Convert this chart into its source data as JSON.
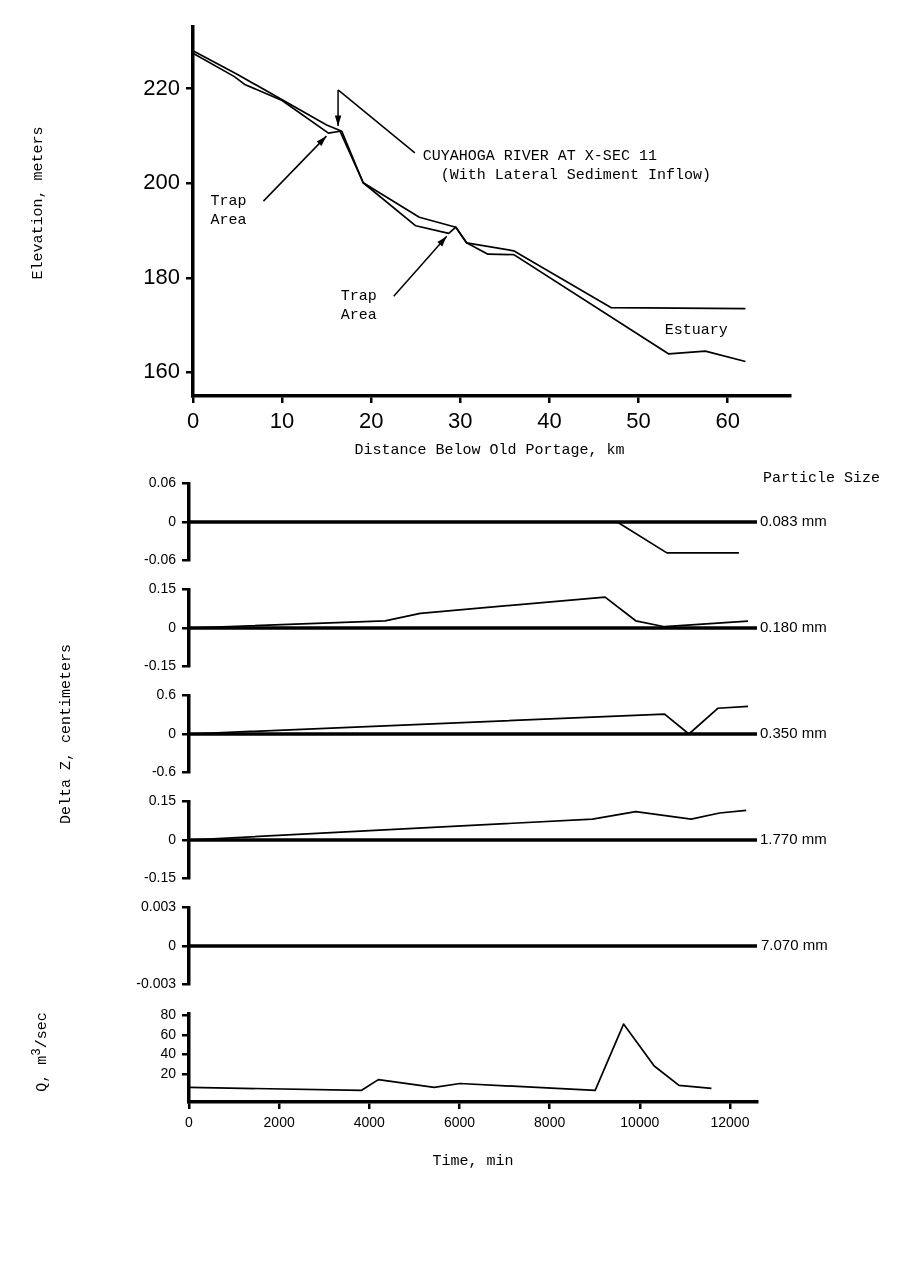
{
  "chart_data": [
    {
      "type": "line",
      "xlabel": "Distance Below Old Portage, km",
      "ylabel": "Elevation, meters",
      "xlim": [
        0,
        67
      ],
      "ylim": [
        155,
        233
      ],
      "xticks": [
        0,
        10,
        20,
        30,
        40,
        50,
        60
      ],
      "yticks": [
        160,
        180,
        200,
        220
      ],
      "series": [
        {
          "color": "#000000",
          "x": [
            0,
            5,
            15,
            16.7,
            19.1,
            25.4,
            29.5,
            30.7,
            36,
            46.9,
            62
          ],
          "values": [
            228,
            223,
            212.3,
            211,
            200.1,
            192.8,
            190.7,
            187.4,
            185.7,
            173.7,
            173.5
          ]
        },
        {
          "color": "#000000",
          "x": [
            0,
            4.6,
            5.8,
            10,
            15.2,
            16.5,
            19.1,
            25,
            28.7,
            29.5,
            30.7,
            33.1,
            36,
            53.4,
            57.5,
            62
          ],
          "values": [
            227.5,
            222.6,
            220.9,
            217.5,
            210.6,
            211,
            200.1,
            191,
            189.4,
            190.7,
            187.4,
            185,
            184.9,
            163.9,
            164.5,
            162.3
          ]
        }
      ],
      "annotations": [
        {
          "text": "Trap\nArea",
          "x": 15.2,
          "y": 210.6
        },
        {
          "text": "Trap\nArea",
          "x": 28.7,
          "y": 189.4
        },
        "CUYAHOGA RIVER AT X-SEC 11\n  (With Lateral Sediment Inflow)",
        "Estuary"
      ]
    },
    {
      "type": "line",
      "xlim": [
        0,
        12600
      ],
      "ylim": [
        -0.06,
        0.06
      ],
      "yticks": [
        -0.06,
        0,
        0.06
      ],
      "tick_labels": "y",
      "series": [
        {
          "color": "#000000",
          "x": [
            0,
            9500,
            10600,
            12200
          ],
          "values": [
            0,
            0,
            -0.048,
            -0.048
          ]
        }
      ],
      "ref_lines": [
        {
          "axis": "y",
          "value": 0,
          "label": "0.083 mm",
          "color": "#000000"
        }
      ],
      "annotations": [
        "Particle Size"
      ]
    },
    {
      "type": "line",
      "xlim": [
        0,
        12600
      ],
      "ylim": [
        -0.15,
        0.15
      ],
      "yticks": [
        -0.15,
        0,
        0.15
      ],
      "tick_labels": "y",
      "series": [
        {
          "color": "#000000",
          "x": [
            0,
            4350,
            5130,
            9230,
            9910,
            10550,
            12400
          ],
          "values": [
            0,
            0.028,
            0.057,
            0.12,
            0.028,
            0.005,
            0.027
          ]
        }
      ],
      "ref_lines": [
        {
          "axis": "y",
          "value": 0,
          "label": "0.180 mm",
          "color": "#000000"
        }
      ]
    },
    {
      "type": "line",
      "ylabel": "Delta Z, centimeters",
      "xlim": [
        0,
        12600
      ],
      "ylim": [
        -0.6,
        0.6
      ],
      "yticks": [
        -0.6,
        0,
        0.6
      ],
      "tick_labels": "y",
      "series": [
        {
          "color": "#000000",
          "x": [
            0,
            10550,
            11090,
            11730,
            12400
          ],
          "values": [
            0,
            0.31,
            0,
            0.4,
            0.43
          ]
        }
      ],
      "ref_lines": [
        {
          "axis": "y",
          "value": 0,
          "label": "0.350 mm",
          "color": "#000000"
        }
      ]
    },
    {
      "type": "line",
      "xlim": [
        0,
        12600
      ],
      "ylim": [
        -0.15,
        0.15
      ],
      "yticks": [
        -0.15,
        0,
        0.15
      ],
      "tick_labels": "y",
      "series": [
        {
          "color": "#000000",
          "x": [
            0,
            8950,
            9910,
            11140,
            11770,
            12360
          ],
          "values": [
            0,
            0.081,
            0.11,
            0.081,
            0.105,
            0.115
          ]
        }
      ],
      "ref_lines": [
        {
          "axis": "y",
          "value": 0,
          "label": "1.770 mm",
          "color": "#000000"
        }
      ]
    },
    {
      "type": "line",
      "xlim": [
        0,
        12600
      ],
      "ylim": [
        -0.003,
        0.003
      ],
      "yticks": [
        -0.003,
        0,
        0.003
      ],
      "tick_labels": "y",
      "series": [
        {
          "name": "7.070 mm",
          "color": "#000000",
          "x": [
            0,
            12600
          ],
          "values": [
            0,
            0
          ]
        }
      ]
    },
    {
      "type": "line",
      "xlabel": "Time, min",
      "ylabel": "Q, m$^{3}$/sec",
      "xlim": [
        0,
        12600
      ],
      "ylim": [
        -9,
        82
      ],
      "xticks": [
        0,
        2000,
        4000,
        6000,
        8000,
        10000,
        12000
      ],
      "yticks": [
        20,
        40,
        60,
        80
      ],
      "series": [
        {
          "color": "#000000",
          "x": [
            0,
            3830,
            4200,
            5440,
            6010,
            9010,
            9640,
            10320,
            10870,
            11590
          ],
          "values": [
            6,
            3,
            14,
            6,
            10,
            3,
            71,
            28,
            8,
            5
          ]
        }
      ]
    }
  ]
}
